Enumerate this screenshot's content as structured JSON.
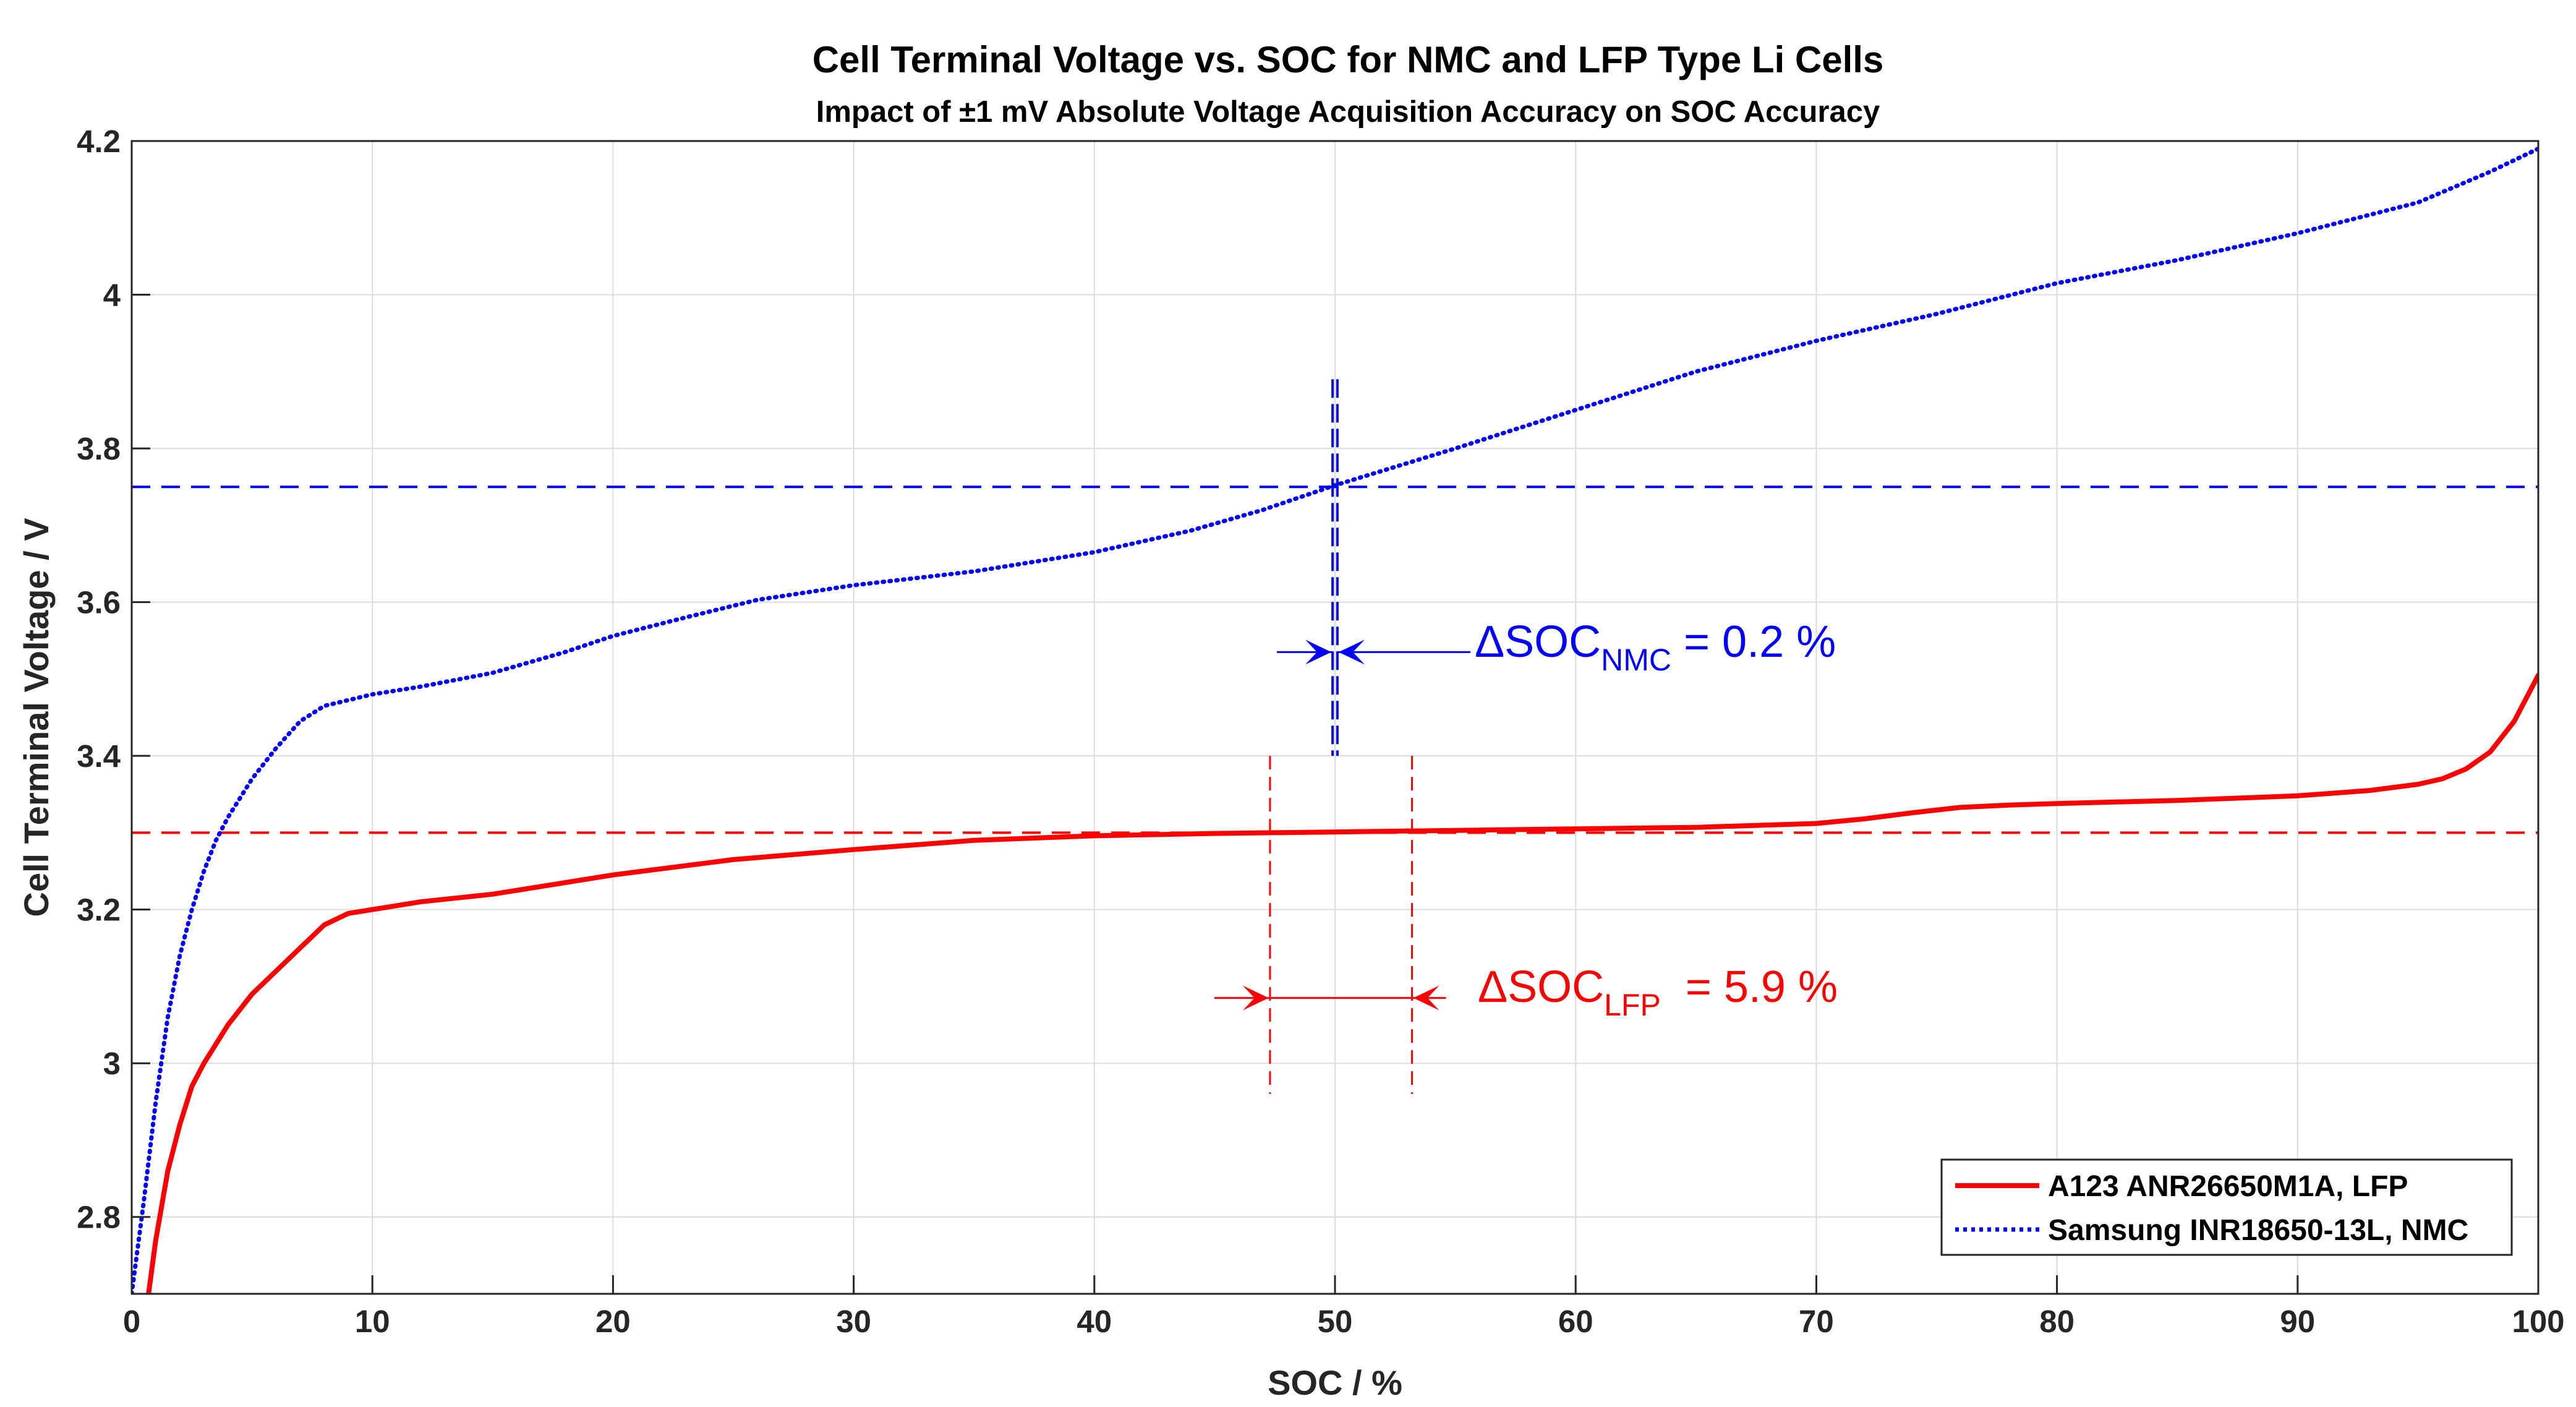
{
  "chart_data": {
    "type": "line",
    "title": "Cell Terminal Voltage vs. SOC for NMC and LFP Type Li Cells",
    "subtitle": "Impact of ±1 mV Absolute Voltage Acquisition Accuracy on SOC Accuracy",
    "xlabel": "SOC / %",
    "ylabel": "Cell Terminal Voltage / V",
    "xlim": [
      0,
      100
    ],
    "ylim": [
      2.7,
      4.2
    ],
    "xticks": [
      0,
      10,
      20,
      30,
      40,
      50,
      60,
      70,
      80,
      90,
      100
    ],
    "yticks": [
      2.8,
      3,
      3.2,
      3.4,
      3.6,
      3.8,
      4,
      4.2
    ],
    "ytick_labels": [
      "2.8",
      "3",
      "3.2",
      "3.4",
      "3.6",
      "3.8",
      "4",
      "4.2"
    ],
    "grid": true,
    "legend_position": "bottom-right",
    "series": [
      {
        "name": "A123 ANR26650M1A, LFP",
        "color": "#ff0000",
        "style": "solid",
        "x": [
          0.7,
          1,
          1.5,
          2,
          2.5,
          3,
          4,
          5,
          6,
          7,
          8,
          9,
          10,
          12,
          15,
          18,
          20,
          25,
          30,
          35,
          40,
          45,
          50,
          55,
          60,
          65,
          70,
          72,
          74,
          76,
          78,
          80,
          85,
          90,
          93,
          95,
          96,
          97,
          98,
          99,
          100
        ],
        "y": [
          2.7,
          2.77,
          2.86,
          2.92,
          2.97,
          3.0,
          3.05,
          3.09,
          3.12,
          3.15,
          3.18,
          3.195,
          3.2,
          3.21,
          3.22,
          3.235,
          3.245,
          3.265,
          3.278,
          3.29,
          3.296,
          3.299,
          3.301,
          3.303,
          3.305,
          3.307,
          3.312,
          3.318,
          3.326,
          3.333,
          3.336,
          3.338,
          3.342,
          3.348,
          3.355,
          3.363,
          3.37,
          3.383,
          3.405,
          3.445,
          3.505
        ]
      },
      {
        "name": "Samsung INR18650-13L, NMC",
        "color": "#0000ff",
        "style": "dotted",
        "x": [
          0,
          0.5,
          1,
          1.5,
          2,
          2.5,
          3,
          3.5,
          4,
          5,
          6,
          7,
          8,
          10,
          12,
          15,
          18,
          20,
          23,
          26,
          30,
          35,
          40,
          44,
          47,
          50,
          55,
          60,
          65,
          70,
          75,
          80,
          85,
          90,
          95,
          98,
          100
        ],
        "y": [
          2.7,
          2.82,
          2.95,
          3.06,
          3.14,
          3.2,
          3.25,
          3.29,
          3.32,
          3.37,
          3.41,
          3.445,
          3.465,
          3.48,
          3.49,
          3.508,
          3.535,
          3.556,
          3.58,
          3.603,
          3.622,
          3.64,
          3.665,
          3.693,
          3.72,
          3.752,
          3.8,
          3.85,
          3.9,
          3.94,
          3.975,
          4.015,
          4.045,
          4.08,
          4.12,
          4.16,
          4.19
        ]
      }
    ],
    "reference_lines": {
      "nmc_voltage": 3.75,
      "lfp_voltage": 3.3,
      "nmc_soc_bounds": [
        49.9,
        50.1
      ],
      "lfp_soc_bounds": [
        47.3,
        53.2
      ]
    },
    "annotations": [
      {
        "id": "nmc",
        "prefix": "ΔSOC",
        "sub": "NMC",
        "suffix": " = 0.2 %",
        "color": "#0000ff"
      },
      {
        "id": "lfp",
        "prefix": "ΔSOC",
        "sub": "LFP",
        "suffix": "  = 5.9 %",
        "color": "#ff0000"
      }
    ]
  }
}
